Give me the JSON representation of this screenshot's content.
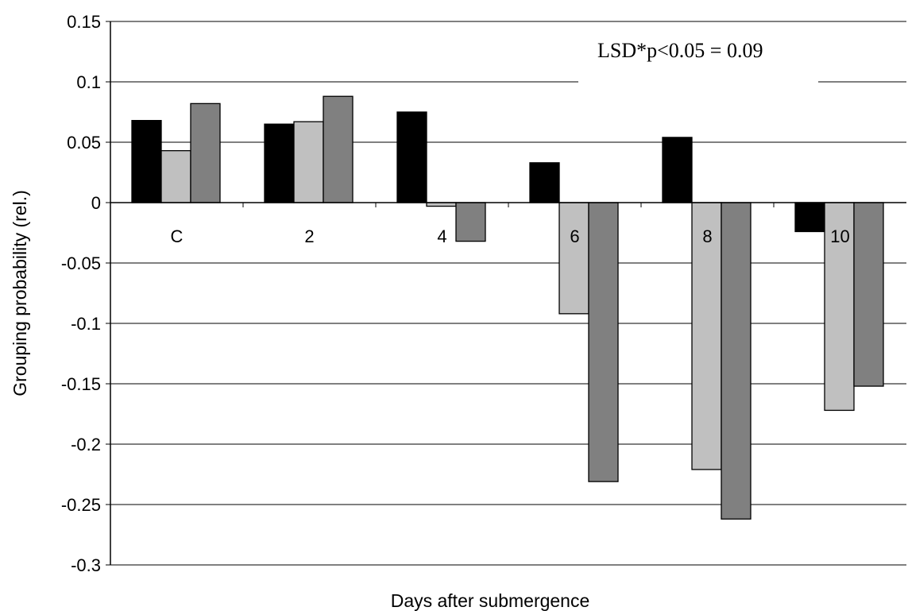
{
  "chart_data": {
    "type": "bar",
    "categories": [
      "C",
      "2",
      "4",
      "6",
      "8",
      "10"
    ],
    "series": [
      {
        "values": [
          0.068,
          0.065,
          0.075,
          0.033,
          0.054,
          -0.024
        ]
      },
      {
        "values": [
          0.043,
          0.067,
          -0.003,
          -0.092,
          -0.221,
          -0.172
        ]
      },
      {
        "values": [
          0.082,
          0.088,
          -0.032,
          -0.231,
          -0.262,
          -0.152
        ]
      }
    ],
    "series_colors": [
      "#000000",
      "#c0c0c0",
      "#808080"
    ],
    "title": "",
    "xlabel": "Days after submergence",
    "ylabel": "Grouping probability (rel.)",
    "ylim": [
      -0.3,
      0.15
    ],
    "yticks": [
      0.15,
      0.1,
      0.05,
      0,
      -0.05,
      -0.1,
      -0.15,
      -0.2,
      -0.25,
      -0.3
    ],
    "ytick_labels": [
      "0.15",
      "0.1",
      "0.05",
      "0",
      "-0.05",
      "-0.1",
      "-0.15",
      "-0.2",
      "-0.25",
      "-0.3"
    ],
    "grid": true,
    "legend": "none",
    "annotation": "LSD*p<0.05 = 0.09"
  }
}
